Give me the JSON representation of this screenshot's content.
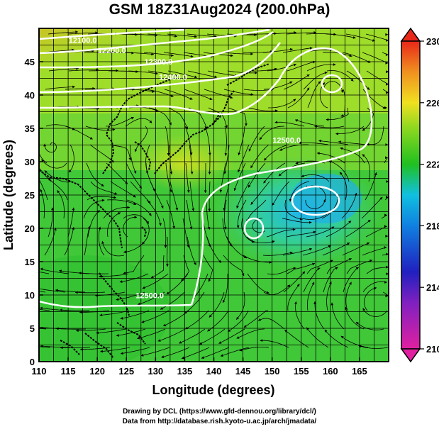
{
  "title": "GSM 18Z31Aug2024 (200.0hPa)",
  "x_axis": {
    "label": "Longitude (degrees)",
    "ticks": [
      "110",
      "115",
      "120",
      "125",
      "130",
      "135",
      "140",
      "145",
      "150",
      "155",
      "160",
      "165"
    ]
  },
  "y_axis": {
    "label": "Latitude (degrees)",
    "ticks": [
      "0",
      "5",
      "10",
      "15",
      "20",
      "25",
      "30",
      "35",
      "40",
      "45"
    ]
  },
  "colorbar": {
    "ticks": [
      "210",
      "214",
      "218",
      "222",
      "226",
      "230"
    ],
    "colors": [
      "#d020b0",
      "#3020c0",
      "#10a0f0",
      "#20c020",
      "#c8e020",
      "#ff8000",
      "#e82020"
    ]
  },
  "contours": [
    {
      "label": "12100.0",
      "lon": 117.5,
      "lat": 47.8
    },
    {
      "label": "12200.0",
      "lon": 122.5,
      "lat": 46.3
    },
    {
      "label": "12300.0",
      "lon": 130.5,
      "lat": 44.6
    },
    {
      "label": "12400.0",
      "lon": 133.0,
      "lat": 42.3
    },
    {
      "label": "12500.0",
      "lon": 152.5,
      "lat": 32.8
    },
    {
      "label": "12500.0",
      "lon": 129.0,
      "lat": 9.5
    }
  ],
  "credits": {
    "line1": "Drawing by DCL (https://www.gfd-dennou.org/library/dcl/)",
    "line2": "Data from http://database.rish.kyoto-u.ac.jp/arch/jmadata/"
  }
}
